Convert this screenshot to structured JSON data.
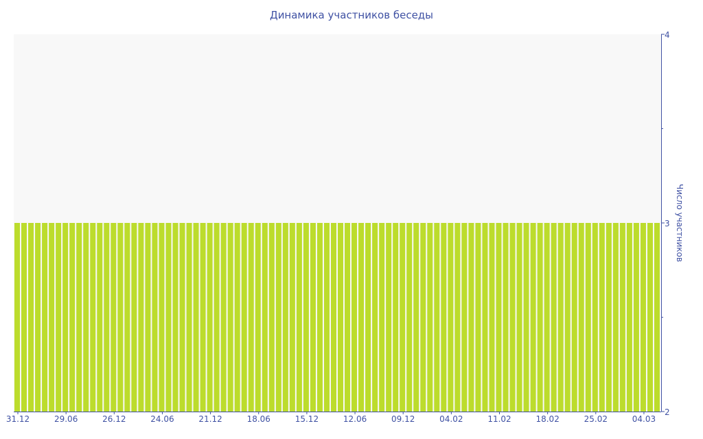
{
  "chart_data": {
    "type": "bar",
    "title": "Динамика участников беседы",
    "ylabel": "Число участников",
    "xlabel": "",
    "ylim": [
      2,
      4
    ],
    "y_axis_position": "right",
    "y_ticks": [
      "2",
      "3",
      "4"
    ],
    "grid": false,
    "bar_count": 94,
    "value": 3,
    "x_tick_labels": [
      "31.12",
      "29.06",
      "26.12",
      "24.06",
      "21.12",
      "18.06",
      "15.12",
      "12.06",
      "09.12",
      "04.02",
      "11.02",
      "18.02",
      "25.02",
      "04.03"
    ],
    "x_tick_every_bars": 7,
    "colors": {
      "bar": "#bcdc2c",
      "plot_bg": "#f8f8f8",
      "text": "#3f51a3",
      "axis": "#3f51a3"
    }
  }
}
